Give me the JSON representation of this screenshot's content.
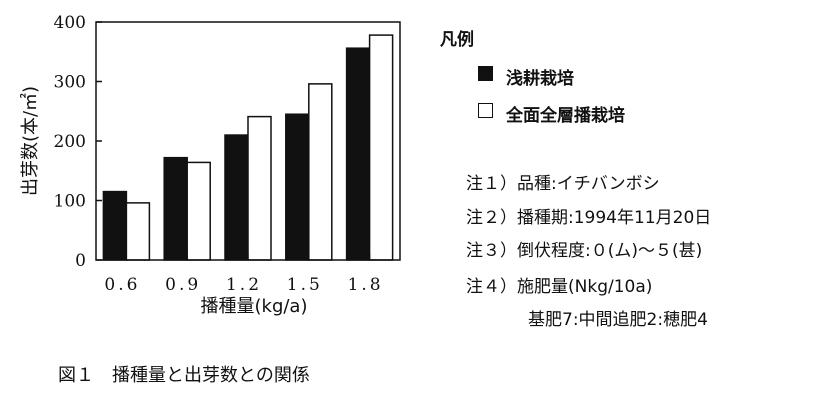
{
  "chart_data": {
    "type": "bar",
    "categories": [
      "0.6",
      "0.9",
      "1.2",
      "1.5",
      "1.8"
    ],
    "series": [
      {
        "name": "浅耕栽培",
        "values": [
          115,
          172,
          210,
          245,
          356
        ],
        "color": "#111111"
      },
      {
        "name": "全面全層播栽培",
        "values": [
          96,
          164,
          241,
          296,
          378
        ],
        "color": "#ffffff"
      }
    ],
    "xlabel": "播種量(kg/a)",
    "ylabel": "出芽数(本/㎡)",
    "ylim": [
      0,
      400
    ],
    "yticks": [
      "0",
      "100",
      "200",
      "300",
      "400"
    ],
    "legend_title": "凡例",
    "legend_placement": "right"
  },
  "notes": [
    "注１）品種:イチバンボシ",
    "注２）播種期:1994年11月20日",
    "注３）倒伏程度:０(ム)～５(甚)",
    "注４）施肥量(Nkg/10a)",
    "基肥7:中間追肥2:穂肥4"
  ],
  "caption": "図１　播種量と出芽数との関係"
}
